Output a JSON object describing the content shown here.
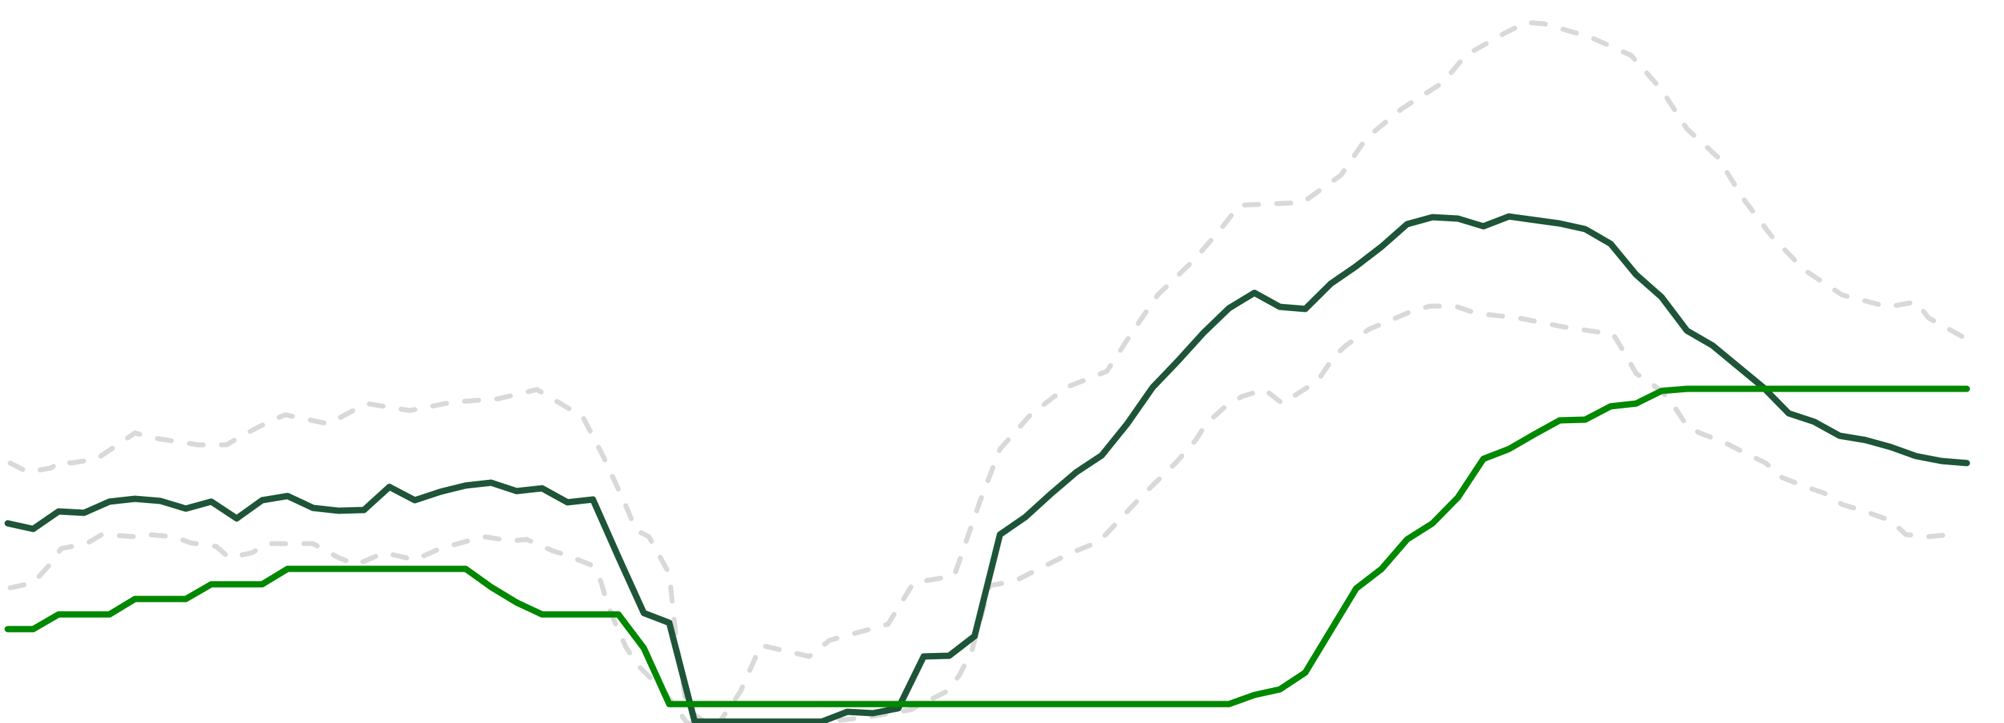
{
  "chart_data": {
    "type": "line",
    "title": "",
    "xlabel": "",
    "ylabel": "",
    "grid": false,
    "axes_visible": false,
    "legend": "none",
    "xlim": [
      0,
      77
    ],
    "ylim": [
      0,
      1032
    ],
    "series": [
      {
        "style": "dashed",
        "color": "#d9d9d9",
        "points": [
          [
            0.1,
            371
          ],
          [
            0.8,
            358
          ],
          [
            1.7,
            364
          ],
          [
            2.1,
            374
          ],
          [
            2.5,
            371
          ],
          [
            3.5,
            377
          ],
          [
            5.0,
            414
          ],
          [
            5.7,
            407
          ],
          [
            7.5,
            397
          ],
          [
            8.6,
            397
          ],
          [
            9.2,
            410
          ],
          [
            10.1,
            427
          ],
          [
            10.9,
            440
          ],
          [
            12.6,
            427
          ],
          [
            14.1,
            456
          ],
          [
            15.8,
            446
          ],
          [
            17.5,
            458
          ],
          [
            19.3,
            463
          ],
          [
            20.8,
            476
          ],
          [
            22.6,
            437
          ],
          [
            23.4,
            381
          ],
          [
            24.2,
            318
          ],
          [
            24.7,
            275
          ],
          [
            25.2,
            266
          ],
          [
            26.0,
            213
          ],
          [
            26.3,
            111
          ],
          [
            26.7,
            19
          ],
          [
            27.8,
            -8
          ],
          [
            28.8,
            45
          ],
          [
            29.6,
            111
          ],
          [
            31.5,
            95
          ],
          [
            32.3,
            118
          ],
          [
            34.6,
            141
          ],
          [
            35.6,
            200
          ],
          [
            37.2,
            210
          ],
          [
            38.2,
            315
          ],
          [
            39.0,
            391
          ],
          [
            40.2,
            440
          ],
          [
            41.6,
            479
          ],
          [
            43.2,
            502
          ],
          [
            44.2,
            558
          ],
          [
            45.2,
            611
          ],
          [
            46.6,
            660
          ],
          [
            47.7,
            706
          ],
          [
            48.4,
            739
          ],
          [
            50.9,
            743
          ],
          [
            52.4,
            782
          ],
          [
            53.4,
            835
          ],
          [
            54.8,
            877
          ],
          [
            56.4,
            914
          ],
          [
            57.3,
            953
          ],
          [
            58.9,
            986
          ],
          [
            59.7,
            1000
          ],
          [
            60.4,
            998
          ],
          [
            62.2,
            979
          ],
          [
            63.8,
            953
          ],
          [
            65.0,
            904
          ],
          [
            66.0,
            848
          ],
          [
            67.2,
            808
          ],
          [
            68.2,
            749
          ],
          [
            69.3,
            696
          ],
          [
            70.6,
            647
          ],
          [
            72.1,
            611
          ],
          [
            73.9,
            594
          ],
          [
            75.0,
            601
          ],
          [
            75.5,
            578
          ],
          [
            77.0,
            548
          ]
        ]
      },
      {
        "style": "dashed",
        "color": "#d9d9d9",
        "points": [
          [
            0.1,
            193
          ],
          [
            1.0,
            200
          ],
          [
            1.6,
            224
          ],
          [
            2.1,
            249
          ],
          [
            3.1,
            256
          ],
          [
            3.7,
            269
          ],
          [
            5.0,
            266
          ],
          [
            5.5,
            269
          ],
          [
            6.5,
            266
          ],
          [
            7.2,
            257
          ],
          [
            8.2,
            252
          ],
          [
            8.7,
            236
          ],
          [
            9.6,
            243
          ],
          [
            10.2,
            256
          ],
          [
            12.0,
            256
          ],
          [
            13.0,
            236
          ],
          [
            13.7,
            226
          ],
          [
            14.8,
            243
          ],
          [
            16.0,
            233
          ],
          [
            17.0,
            249
          ],
          [
            18.7,
            266
          ],
          [
            19.8,
            260
          ],
          [
            20.4,
            262
          ],
          [
            21.4,
            246
          ],
          [
            22.0,
            239
          ],
          [
            22.9,
            226
          ],
          [
            23.3,
            203
          ],
          [
            23.6,
            167
          ],
          [
            23.9,
            141
          ],
          [
            24.3,
            108
          ],
          [
            24.8,
            81
          ],
          [
            25.8,
            45
          ],
          [
            26.7,
            0
          ],
          [
            31.8,
            0
          ],
          [
            33.9,
            9
          ],
          [
            35.5,
            19
          ],
          [
            36.9,
            45
          ],
          [
            37.4,
            68
          ],
          [
            37.9,
            104
          ],
          [
            38.6,
            196
          ],
          [
            39.6,
            203
          ],
          [
            41.8,
            243
          ],
          [
            42.9,
            259
          ],
          [
            44.6,
            325
          ],
          [
            45.9,
            371
          ],
          [
            46.7,
            404
          ],
          [
            47.1,
            427
          ],
          [
            47.8,
            450
          ],
          [
            48.5,
            466
          ],
          [
            49.4,
            476
          ],
          [
            50.1,
            456
          ],
          [
            51.5,
            489
          ],
          [
            52.1,
            522
          ],
          [
            52.6,
            539
          ],
          [
            53.5,
            562
          ],
          [
            55.2,
            588
          ],
          [
            55.9,
            595
          ],
          [
            56.9,
            595
          ],
          [
            57.7,
            585
          ],
          [
            59.4,
            578
          ],
          [
            61.2,
            565
          ],
          [
            63.1,
            555
          ],
          [
            63.6,
            525
          ],
          [
            64.0,
            499
          ],
          [
            64.8,
            479
          ],
          [
            65.3,
            463
          ],
          [
            66.0,
            424
          ],
          [
            66.5,
            414
          ],
          [
            67.5,
            400
          ],
          [
            68.2,
            387
          ],
          [
            69.1,
            371
          ],
          [
            69.7,
            351
          ],
          [
            70.6,
            338
          ],
          [
            71.4,
            328
          ],
          [
            72.1,
            312
          ],
          [
            73.0,
            302
          ],
          [
            74.0,
            289
          ],
          [
            74.6,
            269
          ],
          [
            75.5,
            266
          ],
          [
            76.4,
            269
          ]
        ]
      },
      {
        "style": "solid",
        "color": "#1e5538",
        "values": [
          285,
          277,
          302,
          300,
          316,
          320,
          317,
          306,
          316,
          292,
          318,
          324,
          307,
          303,
          304,
          337,
          318,
          330,
          339,
          343,
          331,
          335,
          315,
          319,
          237,
          157,
          143,
          2,
          2,
          2,
          2,
          2,
          2,
          16,
          14,
          21,
          95,
          96,
          124,
          269,
          294,
          327,
          358,
          382,
          427,
          479,
          517,
          557,
          592,
          614,
          594,
          591,
          627,
          652,
          680,
          712,
          722,
          720,
          709,
          723,
          718,
          713,
          705,
          684,
          640,
          608,
          560,
          539,
          509,
          479,
          442,
          430,
          410,
          404,
          394,
          381,
          374,
          371
        ]
      },
      {
        "style": "solid",
        "color": "#008800",
        "values": [
          134,
          134,
          155,
          155,
          155,
          177,
          177,
          177,
          198,
          198,
          198,
          220,
          220,
          220,
          220,
          220,
          220,
          220,
          220,
          194,
          172,
          155,
          155,
          155,
          155,
          107,
          27,
          27,
          27,
          27,
          27,
          27,
          27,
          27,
          27,
          27,
          27,
          27,
          27,
          27,
          27,
          27,
          27,
          27,
          27,
          27,
          27,
          27,
          27,
          40,
          48,
          72,
          132,
          192,
          220,
          262,
          285,
          322,
          377,
          391,
          412,
          432,
          433,
          452,
          456,
          474,
          477,
          477,
          477,
          477,
          477,
          477,
          477,
          477,
          477,
          477,
          477,
          477
        ]
      }
    ]
  }
}
